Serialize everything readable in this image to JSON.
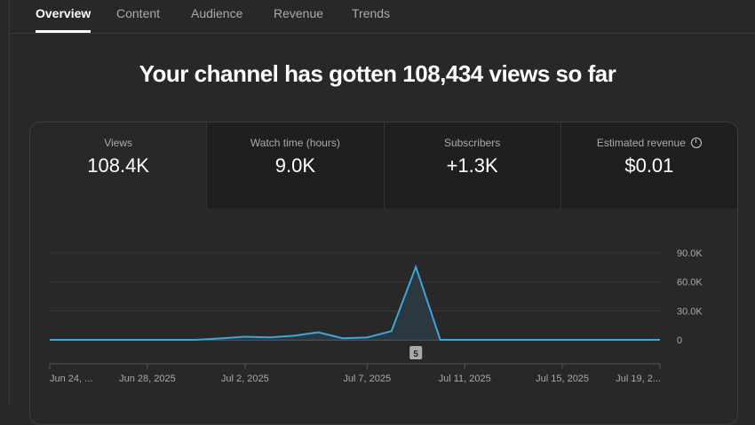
{
  "tabs": [
    {
      "label": "Overview",
      "active": true
    },
    {
      "label": "Content"
    },
    {
      "label": "Audience"
    },
    {
      "label": "Revenue"
    },
    {
      "label": "Trends"
    }
  ],
  "headline": "Your channel has gotten 108,434 views so far",
  "metrics": [
    {
      "label": "Views",
      "value": "108.4K"
    },
    {
      "label": "Watch time (hours)",
      "value": "9.0K"
    },
    {
      "label": "Subscribers",
      "value": "+1.3K"
    },
    {
      "label": "Estimated revenue",
      "value": "$0.01",
      "icon": "clock-icon"
    }
  ],
  "colors": {
    "line": "#3ea6d8",
    "fill": "#2b3a42"
  },
  "chart_data": {
    "type": "area",
    "title": "Views",
    "x_start": "Jun 24, 2025",
    "x": [
      "Jun 24",
      "Jun 25",
      "Jun 26",
      "Jun 27",
      "Jun 28",
      "Jun 29",
      "Jun 30",
      "Jul 1",
      "Jul 2",
      "Jul 3",
      "Jul 4",
      "Jul 5",
      "Jul 6",
      "Jul 7",
      "Jul 8",
      "Jul 9",
      "Jul 10",
      "Jul 11",
      "Jul 12",
      "Jul 13",
      "Jul 14",
      "Jul 15",
      "Jul 16",
      "Jul 17",
      "Jul 18",
      "Jul 19"
    ],
    "values": [
      0,
      0,
      0,
      0,
      0,
      0,
      0,
      1500,
      3200,
      2500,
      4200,
      7800,
      1600,
      2400,
      9000,
      75500,
      0,
      0,
      0,
      0,
      0,
      0,
      0,
      0,
      0,
      0
    ],
    "ylim": [
      0,
      90000
    ],
    "yticks": [
      {
        "v": 90000,
        "label": "90.0K"
      },
      {
        "v": 60000,
        "label": "60.0K"
      },
      {
        "v": 30000,
        "label": "30.0K"
      },
      {
        "v": 0,
        "label": "0"
      }
    ],
    "xticks": [
      {
        "i": 0,
        "label": "Jun 24, ..."
      },
      {
        "i": 4,
        "label": "Jun 28, 2025"
      },
      {
        "i": 8,
        "label": "Jul 2, 2025"
      },
      {
        "i": 13,
        "label": "Jul 7, 2025"
      },
      {
        "i": 17,
        "label": "Jul 11, 2025"
      },
      {
        "i": 21,
        "label": "Jul 15, 2025"
      },
      {
        "i": 25,
        "label": "Jul 19, 2..."
      }
    ],
    "marker": {
      "i": 15,
      "label": "5"
    }
  }
}
